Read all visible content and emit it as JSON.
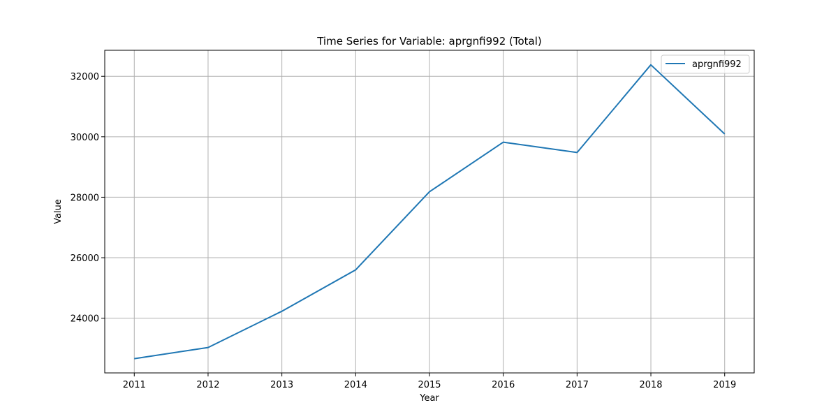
{
  "chart_data": {
    "type": "line",
    "title": "Time Series for Variable: aprgnfi992 (Total)",
    "xlabel": "Year",
    "ylabel": "Value",
    "x": [
      2011,
      2012,
      2013,
      2014,
      2015,
      2016,
      2017,
      2018,
      2019
    ],
    "series": [
      {
        "name": "aprgnfi992",
        "color": "#1f77b4",
        "values": [
          22660,
          23030,
          24230,
          25600,
          28180,
          29820,
          29480,
          32380,
          30090
        ]
      }
    ],
    "xlim": [
      2010.6,
      2019.4
    ],
    "ylim": [
      22190,
      32860
    ],
    "yticks": [
      24000,
      26000,
      28000,
      30000,
      32000
    ],
    "grid": true,
    "legend": "top-right"
  }
}
